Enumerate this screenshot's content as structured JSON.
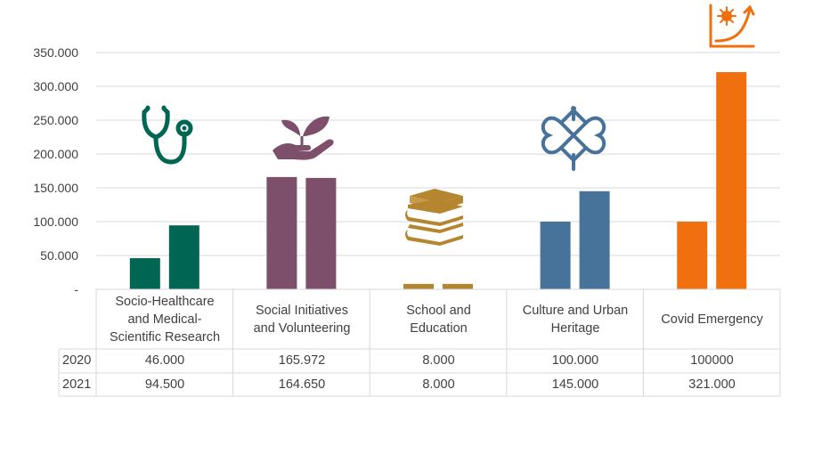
{
  "chart_data": {
    "type": "bar",
    "categories": [
      "Socio-Healthcare and Medical-Scientific Research",
      "Social Initiatives and Volunteering",
      "School and Education",
      "Culture and Urban Heritage",
      "Covid Emergency"
    ],
    "category_lines": [
      [
        "Socio-Healthcare",
        "and Medical-",
        "Scientific Research"
      ],
      [
        "Social Initiatives",
        "and Volunteering"
      ],
      [
        "School and",
        "Education"
      ],
      [
        "Culture and Urban",
        "Heritage"
      ],
      [
        "Covid Emergency"
      ]
    ],
    "series": [
      {
        "name": "2020",
        "values": [
          46000,
          165972,
          8000,
          100000,
          100000
        ],
        "labels": [
          "46.000",
          "165.972",
          "8.000",
          "100.000",
          "100000"
        ]
      },
      {
        "name": "2021",
        "values": [
          94500,
          164650,
          8000,
          145000,
          321000
        ],
        "labels": [
          "94.500",
          "164.650",
          "8.000",
          "145.000",
          "321.000"
        ]
      }
    ],
    "category_colors": [
      "#006654",
      "#7d4f6b",
      "#b5852f",
      "#47729a",
      "#f07010"
    ],
    "category_icons": [
      "stethoscope-icon",
      "hand-plant-icon",
      "books-icon",
      "endless-knot-icon",
      "virus-growth-icon"
    ],
    "ylim": [
      0,
      350000
    ],
    "yticks": [
      0,
      50000,
      100000,
      150000,
      200000,
      250000,
      300000,
      350000
    ],
    "ytick_labels": [
      "-",
      "50.000",
      "100.000",
      "150.000",
      "200.000",
      "250.000",
      "300.000",
      "350.000"
    ],
    "grid": true,
    "data_table": true
  }
}
